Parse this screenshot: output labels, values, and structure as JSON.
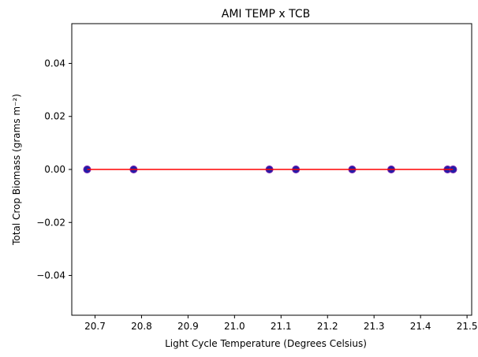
{
  "chart_data": {
    "type": "scatter",
    "title": "AMI TEMP x TCB",
    "xlabel": "Light Cycle Temperature (Degrees Celsius)",
    "ylabel": "Total Crop Biomass (grams m⁻²)",
    "xlim": [
      20.65,
      21.51
    ],
    "ylim": [
      -0.055,
      0.055
    ],
    "xticks": [
      20.7,
      20.8,
      20.9,
      21.0,
      21.1,
      21.2,
      21.3,
      21.4,
      21.5
    ],
    "xtick_labels": [
      "20.7",
      "20.8",
      "20.9",
      "21.0",
      "21.1",
      "21.2",
      "21.3",
      "21.4",
      "21.5"
    ],
    "yticks": [
      -0.04,
      -0.02,
      0.0,
      0.02,
      0.04
    ],
    "ytick_labels": [
      "−0.04",
      "−0.02",
      "0.00",
      "0.02",
      "0.04"
    ],
    "grid": false,
    "legend": "none",
    "series": [
      {
        "kind": "scatter",
        "color": "#1f1fa8",
        "x": [
          20.683,
          20.783,
          21.075,
          21.132,
          21.253,
          21.337,
          21.458,
          21.47
        ],
        "y": [
          0,
          0,
          0,
          0,
          0,
          0,
          0,
          0
        ]
      },
      {
        "kind": "line",
        "color": "#ff0000",
        "x": [
          20.683,
          21.47
        ],
        "y": [
          0,
          0
        ]
      }
    ]
  }
}
